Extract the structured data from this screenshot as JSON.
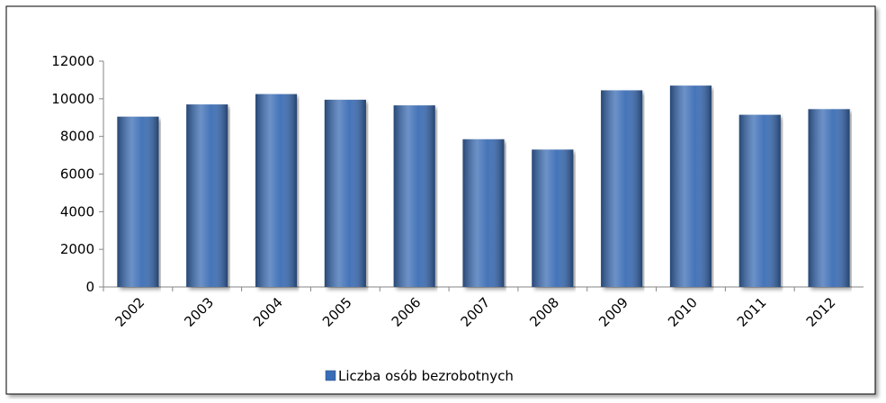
{
  "chart_data": {
    "type": "bar",
    "categories": [
      "2002",
      "2003",
      "2004",
      "2005",
      "2006",
      "2007",
      "2008",
      "2009",
      "2010",
      "2011",
      "2012"
    ],
    "series": [
      {
        "name": "Liczba osób bezrobotnych",
        "color": "#3a6db5",
        "values": [
          9050,
          9700,
          10250,
          9950,
          9650,
          7850,
          7300,
          10450,
          10700,
          9150,
          9450
        ]
      }
    ],
    "ylim": [
      0,
      12000
    ],
    "yticks": [
      0,
      2000,
      4000,
      6000,
      8000,
      10000,
      12000
    ],
    "grid": false,
    "legend": "bottom"
  }
}
